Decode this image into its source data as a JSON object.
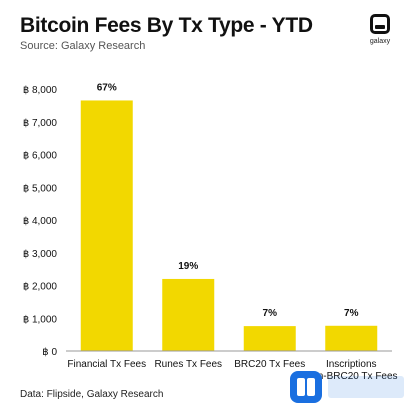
{
  "header": {
    "title": "Bitcoin Fees By Tx Type - YTD",
    "subtitle": "Source: Galaxy Research",
    "logo_text": "galaxy"
  },
  "footer": {
    "text": "Data: Flipside, Galaxy Research"
  },
  "colors": {
    "bar": "#F2D800",
    "axis": "#999999",
    "text": "#111111"
  },
  "chart_data": {
    "type": "bar",
    "title": "Bitcoin Fees By Tx Type - YTD",
    "xlabel": "",
    "ylabel": "",
    "categories": [
      "Financial Tx Fees",
      "Runes Tx Fees",
      "BRC20 Tx Fees",
      "Inscriptions Non-BRC20 Tx Fees"
    ],
    "values": [
      7650,
      2200,
      760,
      770
    ],
    "data_labels": [
      "67%",
      "19%",
      "7%",
      "7%"
    ],
    "ylim": [
      0,
      8000
    ],
    "yticks": [
      0,
      1000,
      2000,
      3000,
      4000,
      5000,
      6000,
      7000,
      8000
    ],
    "ytick_labels": [
      "฿ 0",
      "฿ 1,000",
      "฿ 2,000",
      "฿ 3,000",
      "฿ 4,000",
      "฿ 5,000",
      "฿ 6,000",
      "฿ 7,000",
      "฿ 8,000"
    ],
    "grid": false,
    "legend": "none"
  }
}
